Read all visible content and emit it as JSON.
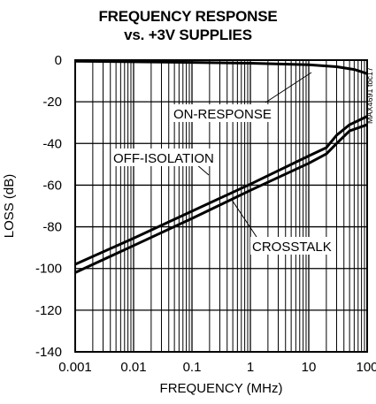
{
  "chart_data": {
    "type": "line",
    "title": "FREQUENCY RESPONSE",
    "subtitle": "vs. +3V SUPPLIES",
    "xlabel": "FREQUENCY (MHz)",
    "ylabel": "LOSS (dB)",
    "x_scale": "log",
    "xlim": [
      0.001,
      100
    ],
    "ylim": [
      -140,
      0
    ],
    "x_ticks": [
      0.001,
      0.01,
      0.1,
      1,
      10,
      100
    ],
    "x_tick_labels": [
      "0.001",
      "0.01",
      "0.1",
      "1",
      "10",
      "100"
    ],
    "y_ticks": [
      0,
      -20,
      -40,
      -60,
      -80,
      -100,
      -120,
      -140
    ],
    "y_tick_labels": [
      "0",
      "-20",
      "-40",
      "-60",
      "-80",
      "-100",
      "-120",
      "-140"
    ],
    "grid": true,
    "series": [
      {
        "name": "ON-RESPONSE",
        "points": [
          [
            0.001,
            -0.5
          ],
          [
            0.01,
            -0.8
          ],
          [
            0.1,
            -1.1
          ],
          [
            1,
            -1.5
          ],
          [
            10,
            -2.2
          ],
          [
            30,
            -3.2
          ],
          [
            60,
            -4.5
          ],
          [
            100,
            -6.5
          ]
        ]
      },
      {
        "name": "OFF-ISOLATION",
        "points": [
          [
            0.001,
            -98
          ],
          [
            0.01,
            -85.5
          ],
          [
            0.1,
            -72.5
          ],
          [
            1,
            -59.5
          ],
          [
            10,
            -46
          ],
          [
            20,
            -42
          ],
          [
            30,
            -36
          ],
          [
            50,
            -31
          ],
          [
            100,
            -27
          ]
        ]
      },
      {
        "name": "CROSSTALK",
        "points": [
          [
            0.001,
            -102
          ],
          [
            0.01,
            -89
          ],
          [
            0.1,
            -76
          ],
          [
            1,
            -62.5
          ],
          [
            10,
            -49.5
          ],
          [
            20,
            -45
          ],
          [
            30,
            -40
          ],
          [
            50,
            -34
          ],
          [
            100,
            -31
          ]
        ]
      }
    ],
    "annotations": [
      "ON-RESPONSE",
      "OFF-ISOLATION",
      "CROSSTALK"
    ],
    "figure_code": "MAX4691 toc17"
  }
}
